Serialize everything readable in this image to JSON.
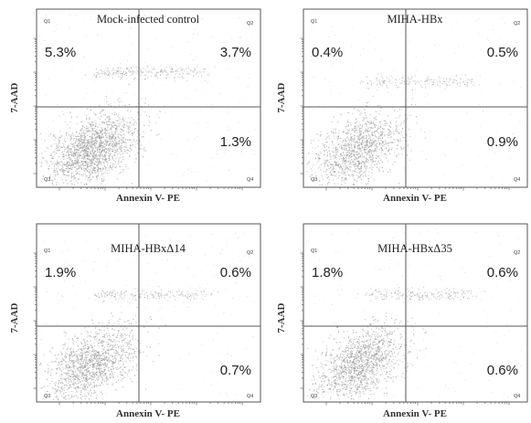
{
  "chart_data": [
    {
      "type": "scatter",
      "title": "Mock-infected control",
      "xlabel": "Annexin V- PE",
      "ylabel": "7-AAD",
      "x_scale": "log",
      "y_scale": "log",
      "quadrants": [
        {
          "name": "Q1",
          "percent": "5.3%"
        },
        {
          "name": "Q2",
          "percent": "3.7%"
        },
        {
          "name": "Q3",
          "percent": ""
        },
        {
          "name": "Q4",
          "percent": "1.3%"
        }
      ],
      "scatter_density": 1.0
    },
    {
      "type": "scatter",
      "title": "MIHA-HBx",
      "xlabel": "Annexin V- PE",
      "ylabel": "7-AAD",
      "x_scale": "log",
      "y_scale": "log",
      "quadrants": [
        {
          "name": "Q1",
          "percent": "0.4%"
        },
        {
          "name": "Q2",
          "percent": "0.5%"
        },
        {
          "name": "Q3",
          "percent": ""
        },
        {
          "name": "Q4",
          "percent": "0.9%"
        }
      ],
      "scatter_density": 0.7
    },
    {
      "type": "scatter",
      "title": "MIHA-HBxΔ14",
      "xlabel": "Annexin V- PE",
      "ylabel": "7-AAD",
      "x_scale": "log",
      "y_scale": "log",
      "quadrants": [
        {
          "name": "Q1",
          "percent": "1.9%"
        },
        {
          "name": "Q2",
          "percent": "0.6%"
        },
        {
          "name": "Q3",
          "percent": ""
        },
        {
          "name": "Q4",
          "percent": "0.7%"
        }
      ],
      "scatter_density": 0.8
    },
    {
      "type": "scatter",
      "title": "MIHA-HBxΔ35",
      "xlabel": "Annexin V- PE",
      "ylabel": "7-AAD",
      "x_scale": "log",
      "y_scale": "log",
      "quadrants": [
        {
          "name": "Q1",
          "percent": "1.8%"
        },
        {
          "name": "Q2",
          "percent": "0.6%"
        },
        {
          "name": "Q3",
          "percent": ""
        },
        {
          "name": "Q4",
          "percent": "0.6%"
        }
      ],
      "scatter_density": 0.8
    }
  ],
  "colors": {
    "points": "#9a9a9a",
    "frame": "#555555",
    "gate": "#555555"
  }
}
